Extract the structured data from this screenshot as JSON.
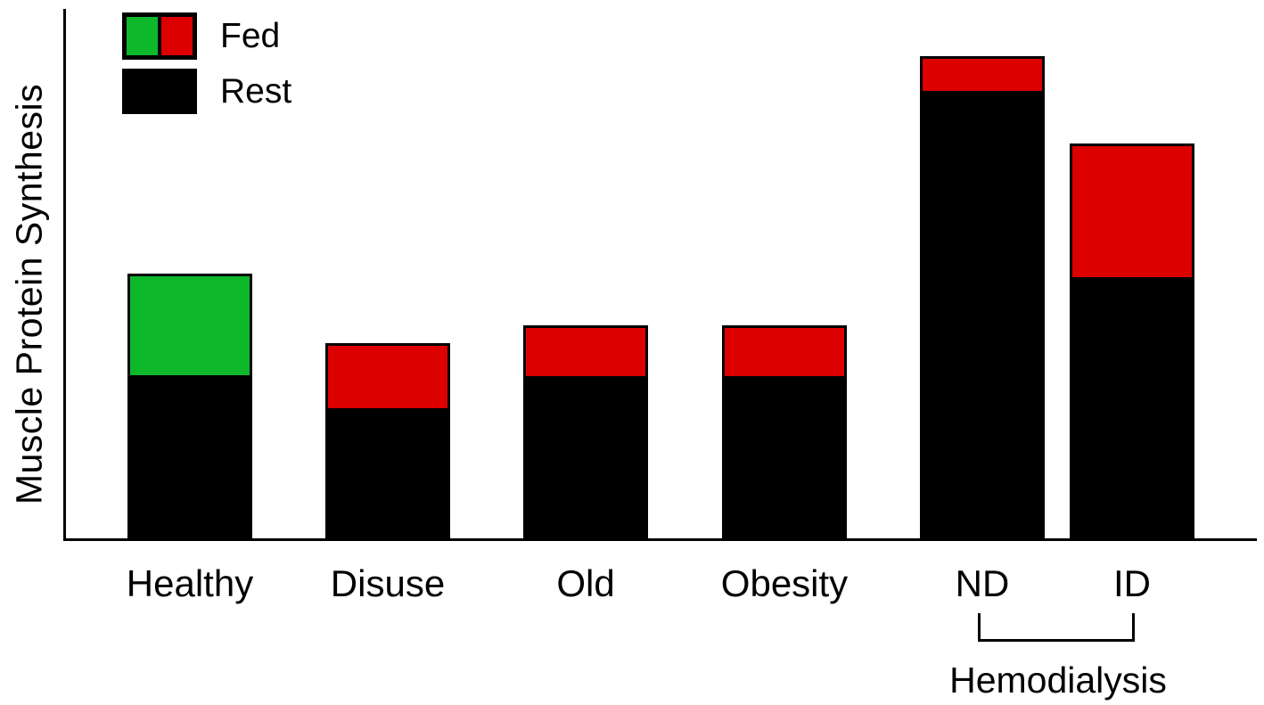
{
  "chart_data": {
    "type": "bar",
    "stacked": true,
    "title": "",
    "xlabel": "",
    "ylabel": "Muscle Protein Synthesis",
    "categories": [
      "Healthy",
      "Disuse",
      "Old",
      "Obesity",
      "ND",
      "ID"
    ],
    "series": [
      {
        "name": "Rest",
        "color": "#000000",
        "values": [
          30.8,
          24.7,
          30.8,
          30.8,
          84.5,
          49.4
        ]
      },
      {
        "name": "Fed",
        "values": [
          19.2,
          12.3,
          9.6,
          9.6,
          6.6,
          25.2
        ],
        "colors": [
          "#0DB92B",
          "#DD0000",
          "#DD0000",
          "#DD0000",
          "#DD0000",
          "#DD0000"
        ]
      }
    ],
    "legend": [
      {
        "label": "Fed",
        "swatch": [
          "#0DB92B",
          "#DD0000"
        ]
      },
      {
        "label": "Rest",
        "swatch": [
          "#000000"
        ]
      }
    ],
    "legend_position": "top-left",
    "group_annotation": {
      "label": "Hemodialysis",
      "spans": [
        "ND",
        "ID"
      ]
    },
    "ylim": [
      0,
      100
    ],
    "y_tick_labels_visible": false,
    "grid": false
  }
}
